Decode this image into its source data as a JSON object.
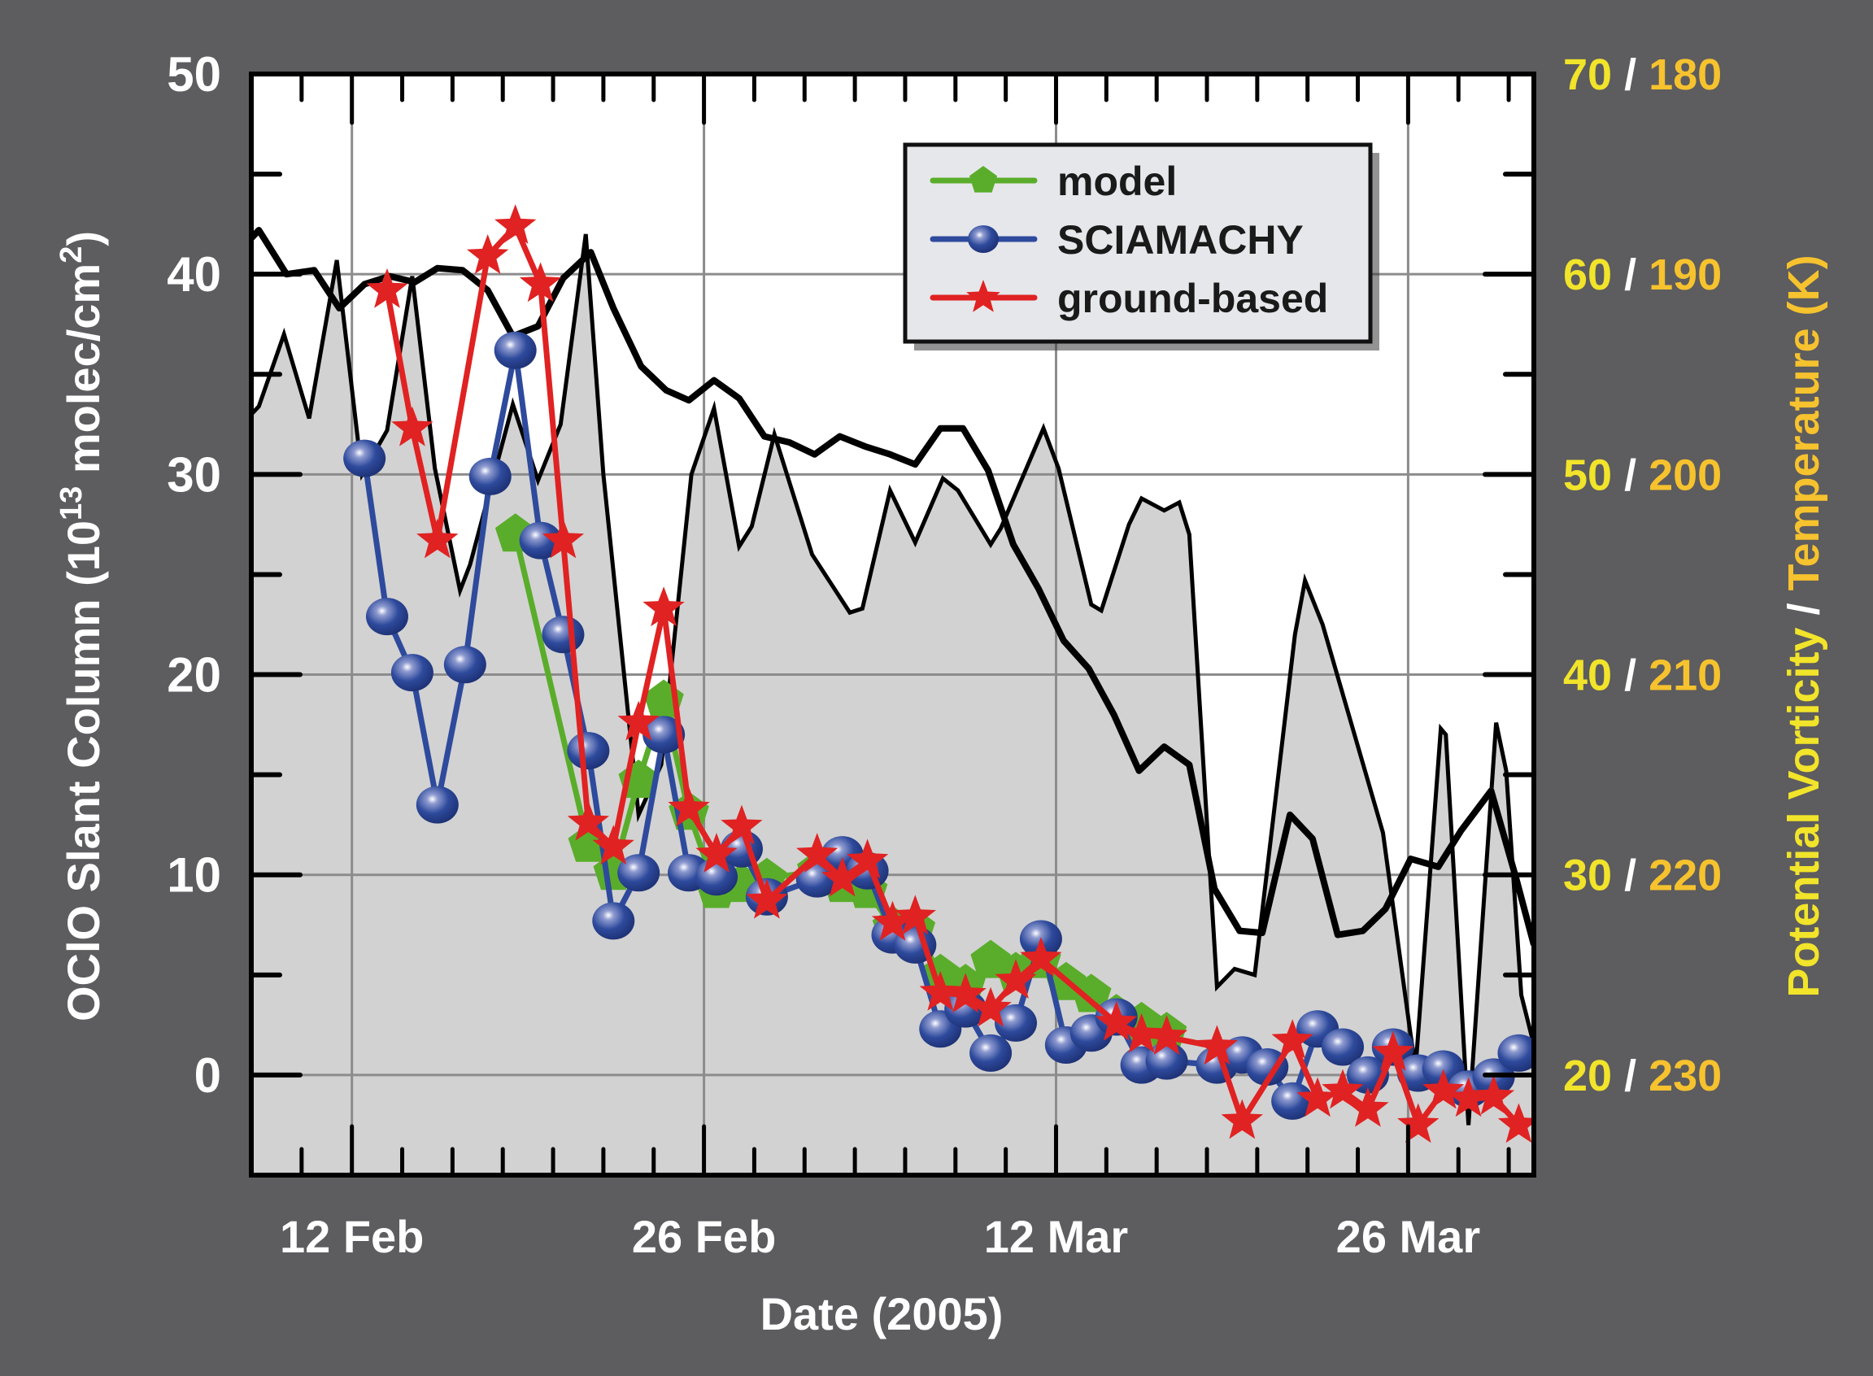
{
  "chart_data": {
    "type": "line",
    "xlabel": "Date (2005)",
    "ylabel": "OClO Slant Column (10",
    "ylabel_exponent": "13",
    "ylabel_unit": " molec/cm",
    "ylabel_unit_exponent": "2",
    "ylabel_close": ")",
    "y2label_part1": "Potential Vorticity",
    "y2label_sep": " / ",
    "y2label_part2": "Temperature (K)",
    "x_unit": "day of year 2005",
    "xlim": [
      39,
      90
    ],
    "ylim": [
      -5,
      50
    ],
    "grid": true,
    "legend_position": "top-right",
    "x_ticks": [
      {
        "day": 43,
        "label": "12 Feb"
      },
      {
        "day": 57,
        "label": "26 Feb"
      },
      {
        "day": 71,
        "label": "12 Mar"
      },
      {
        "day": 85,
        "label": "26 Mar"
      }
    ],
    "y_ticks": [
      {
        "value": 50,
        "label": "50"
      },
      {
        "value": 40,
        "label": "40"
      },
      {
        "value": 30,
        "label": "30"
      },
      {
        "value": 20,
        "label": "20"
      },
      {
        "value": 10,
        "label": "10"
      },
      {
        "value": 0,
        "label": "0"
      }
    ],
    "y2_ticks": [
      {
        "value": 50,
        "pv": "70",
        "sep": " / ",
        "temp": "180"
      },
      {
        "value": 40,
        "pv": "60",
        "sep": " / ",
        "temp": "190"
      },
      {
        "value": 30,
        "pv": "50",
        "sep": " / ",
        "temp": "200"
      },
      {
        "value": 20,
        "pv": "40",
        "sep": " / ",
        "temp": "210"
      },
      {
        "value": 10,
        "pv": "30",
        "sep": " / ",
        "temp": "220"
      },
      {
        "value": 0,
        "pv": "20",
        "sep": " / ",
        "temp": "230"
      }
    ],
    "y2_mapping": {
      "pv_offset": 20,
      "temp_base": 230
    },
    "series": [
      {
        "name": "model",
        "color": "#5aad2a",
        "marker": "pentagon",
        "x": [
          49.5,
          52.4,
          53.4,
          54.4,
          55.4,
          56.4,
          57.5,
          58.5,
          59.5,
          61.5,
          62.5,
          63.5,
          64.5,
          65.4,
          66.4,
          67.4,
          68.4,
          69.4,
          70.4,
          71.4,
          72.4,
          73.4,
          74.4,
          75.4
        ],
        "y": [
          27.0,
          11.5,
          10.1,
          14.7,
          18.7,
          13.1,
          9.2,
          9.5,
          9.8,
          10.2,
          9.5,
          9.2,
          7.4,
          7.3,
          5.0,
          4.5,
          5.7,
          5.1,
          5.7,
          4.6,
          4.0,
          3.0,
          2.6,
          2.1
        ]
      },
      {
        "name": "SCIAMACHY",
        "color": "#2e4a9c",
        "marker": "circle",
        "x": [
          43.5,
          44.4,
          45.4,
          46.4,
          47.5,
          48.5,
          49.5,
          50.5,
          51.4,
          52.4,
          53.4,
          54.4,
          55.4,
          56.4,
          57.5,
          58.5,
          59.5,
          61.5,
          62.5,
          63.5,
          64.5,
          65.4,
          66.4,
          67.4,
          68.4,
          69.4,
          70.4,
          71.4,
          72.4,
          73.4,
          74.4,
          75.4,
          77.4,
          78.4,
          79.4,
          80.4,
          81.4,
          82.4,
          83.4,
          84.4,
          85.4,
          86.4,
          87.4,
          88.4,
          89.4
        ],
        "y": [
          30.8,
          22.9,
          20.1,
          13.5,
          20.5,
          29.9,
          36.2,
          26.7,
          22.0,
          16.2,
          7.7,
          10.1,
          17.0,
          10.1,
          9.9,
          11.3,
          8.9,
          9.8,
          11.0,
          10.2,
          7.0,
          6.5,
          2.3,
          3.3,
          1.1,
          2.6,
          6.8,
          1.5,
          2.1,
          2.9,
          0.5,
          0.7,
          0.5,
          1.0,
          0.4,
          -1.3,
          2.3,
          1.4,
          0.0,
          1.4,
          0.1,
          0.3,
          -0.7,
          -0.1,
          1.1
        ]
      },
      {
        "name": "ground-based",
        "color": "#e02222",
        "marker": "star",
        "x": [
          44.4,
          45.4,
          46.4,
          48.4,
          49.5,
          50.5,
          51.4,
          52.4,
          53.4,
          54.4,
          55.4,
          56.4,
          57.5,
          58.5,
          59.5,
          61.5,
          62.5,
          63.5,
          64.5,
          65.4,
          66.4,
          67.4,
          68.4,
          69.4,
          70.4,
          73.4,
          74.4,
          75.4,
          77.4,
          78.4,
          80.4,
          81.4,
          82.4,
          83.4,
          84.4,
          85.4,
          86.4,
          87.4,
          88.4,
          89.4
        ],
        "y": [
          39.2,
          32.3,
          26.7,
          40.9,
          42.4,
          39.5,
          26.7,
          12.6,
          11.4,
          17.6,
          23.3,
          13.3,
          11.0,
          12.4,
          8.7,
          11.0,
          9.8,
          10.7,
          7.6,
          7.9,
          4.1,
          4.0,
          3.3,
          4.7,
          5.8,
          2.6,
          2.0,
          1.9,
          1.4,
          -2.3,
          1.7,
          -1.2,
          -0.8,
          -1.7,
          1.1,
          -2.5,
          -0.8,
          -1.2,
          -1.1,
          -2.5
        ]
      },
      {
        "name": "potential vorticity",
        "axis": "right",
        "color": "#000000",
        "fill": "#d2d2d2",
        "x": [
          39.0,
          39.3,
          40.3,
          41.3,
          42.4,
          43.4,
          44.4,
          45.4,
          46.3,
          47.3,
          47.7,
          49.4,
          50.4,
          51.3,
          52.3,
          53.0,
          54.4,
          55.3,
          56.5,
          57.4,
          58.4,
          58.9,
          59.8,
          61.3,
          62.8,
          63.3,
          64.4,
          65.4,
          66.5,
          67.1,
          68.4,
          68.8,
          70.5,
          71.1,
          72.4,
          72.8,
          73.9,
          74.4,
          75.3,
          75.9,
          76.3,
          77.4,
          78.1,
          78.9,
          80.5,
          80.9,
          81.6,
          84.0,
          85.1,
          85.3,
          86.3,
          86.5,
          87.4,
          88.5,
          88.9,
          89.5,
          90.0
        ],
        "y": [
          53.0,
          53.4,
          57.0,
          52.8,
          60.7,
          50.0,
          52.2,
          59.9,
          50.3,
          44.2,
          45.5,
          53.5,
          49.7,
          52.5,
          62.0,
          50.0,
          33.0,
          35.5,
          50.0,
          53.3,
          46.4,
          47.4,
          52.0,
          46.0,
          43.1,
          43.3,
          49.2,
          46.6,
          49.8,
          49.2,
          46.5,
          47.3,
          52.3,
          50.3,
          43.5,
          43.2,
          47.5,
          48.8,
          48.2,
          48.6,
          47.0,
          24.4,
          25.3,
          25.0,
          42.0,
          44.7,
          42.5,
          32.1,
          22.0,
          20.4,
          37.3,
          37.0,
          17.5,
          37.6,
          35.2,
          24.0,
          21.5
        ]
      },
      {
        "name": "temperature",
        "axis": "right",
        "color": "#000000",
        "x": [
          39.0,
          39.3,
          40.4,
          41.5,
          42.5,
          43.5,
          44.5,
          45.5,
          46.4,
          47.4,
          48.4,
          49.4,
          50.4,
          51.4,
          52.5,
          53.4,
          54.5,
          55.5,
          56.4,
          57.4,
          58.4,
          59.4,
          60.4,
          61.4,
          62.4,
          63.4,
          64.4,
          65.4,
          66.4,
          67.3,
          68.3,
          69.3,
          70.3,
          71.3,
          72.3,
          73.3,
          74.3,
          75.3,
          76.3,
          77.3,
          78.3,
          79.2,
          80.3,
          81.2,
          82.2,
          83.2,
          84.1,
          85.1,
          86.2,
          87.1,
          88.3,
          89.3,
          90.0
        ],
        "y": [
          188.2,
          187.8,
          190.0,
          189.8,
          191.7,
          190.5,
          190.1,
          190.4,
          189.7,
          189.8,
          190.8,
          193.1,
          192.6,
          190.2,
          188.9,
          191.7,
          194.6,
          195.8,
          196.3,
          195.3,
          196.2,
          198.1,
          198.4,
          199.0,
          198.1,
          198.6,
          199.0,
          199.5,
          197.7,
          197.7,
          199.8,
          203.5,
          205.7,
          208.3,
          209.7,
          212.0,
          214.8,
          213.6,
          214.5,
          220.7,
          222.8,
          222.9,
          217.0,
          218.2,
          223.0,
          222.8,
          221.7,
          219.2,
          219.6,
          217.8,
          215.8,
          220.2,
          223.5
        ]
      }
    ]
  },
  "colors": {
    "background": "#5d5c5e",
    "plot_bg": "#ffffff",
    "grid": "#8c8c8c",
    "pv_label": "#f1e42a",
    "temp_label": "#f6c22e",
    "slash": "#ffffff",
    "legend_bg": "#e6e7eb"
  }
}
